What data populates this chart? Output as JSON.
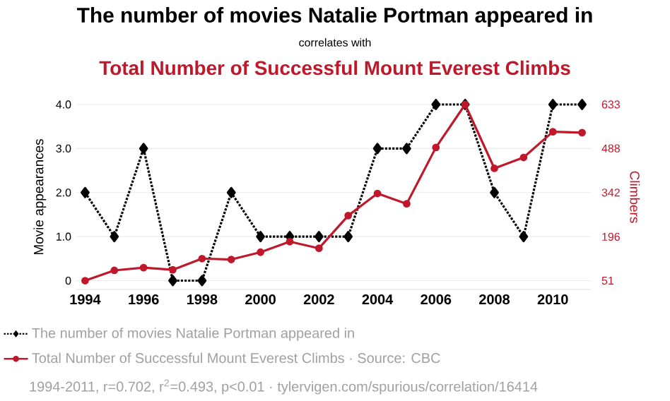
{
  "chart_data": {
    "type": "line",
    "title": "The number of movies Natalie Portman appeared in",
    "subtitle": "correlates with",
    "annotations": [
      "Total Number of Successful Mount Everest Climbs",
      "1994-2011, r=0.702, r$^{2}$=0.493, p<0.01 · tylervigen.com/spurious/correlation/16414"
    ],
    "ylabel": "Movie appearances",
    "y2label": "Climbers",
    "x": [
      1994,
      1995,
      1996,
      1997,
      1998,
      1999,
      2000,
      2001,
      2002,
      2003,
      2004,
      2005,
      2006,
      2007,
      2008,
      2009,
      2010,
      2011
    ],
    "series": [
      {
        "name": "The number of movies Natalie Portman appeared in",
        "color": "#000000",
        "axis": "y",
        "marker": "diamond",
        "line_style": "dotted",
        "values": [
          2,
          1,
          3,
          0,
          0,
          2,
          1,
          1,
          1,
          1,
          3,
          3,
          4,
          4,
          2,
          1,
          4,
          4
        ]
      },
      {
        "name": "Total Number of Successful Mount Everest Climbs · Source: CBC",
        "color": "#c0182b",
        "axis": "y2",
        "marker": "circle",
        "line_style": "solid",
        "values": [
          51,
          85,
          94,
          87,
          124,
          121,
          145,
          180,
          158,
          266,
          339,
          305,
          491,
          633,
          422,
          458,
          543,
          540
        ]
      }
    ],
    "xlim": [
      1993.7,
      2011.3
    ],
    "xticks": [
      1994,
      1996,
      1998,
      2000,
      2002,
      2004,
      2006,
      2008,
      2010
    ],
    "ylim": [
      -0.2,
      4.0
    ],
    "yticks": [
      0,
      {
        "value": 1,
        "label": "1.0"
      },
      {
        "value": 2,
        "label": "2.0"
      },
      {
        "value": 3,
        "label": "3.0"
      },
      {
        "value": 4,
        "label": "4.0"
      }
    ],
    "y2lim": [
      22,
      633
    ],
    "y2ticks": [
      51,
      196,
      342,
      488,
      633
    ],
    "grid": "y",
    "legend": "bottom"
  }
}
